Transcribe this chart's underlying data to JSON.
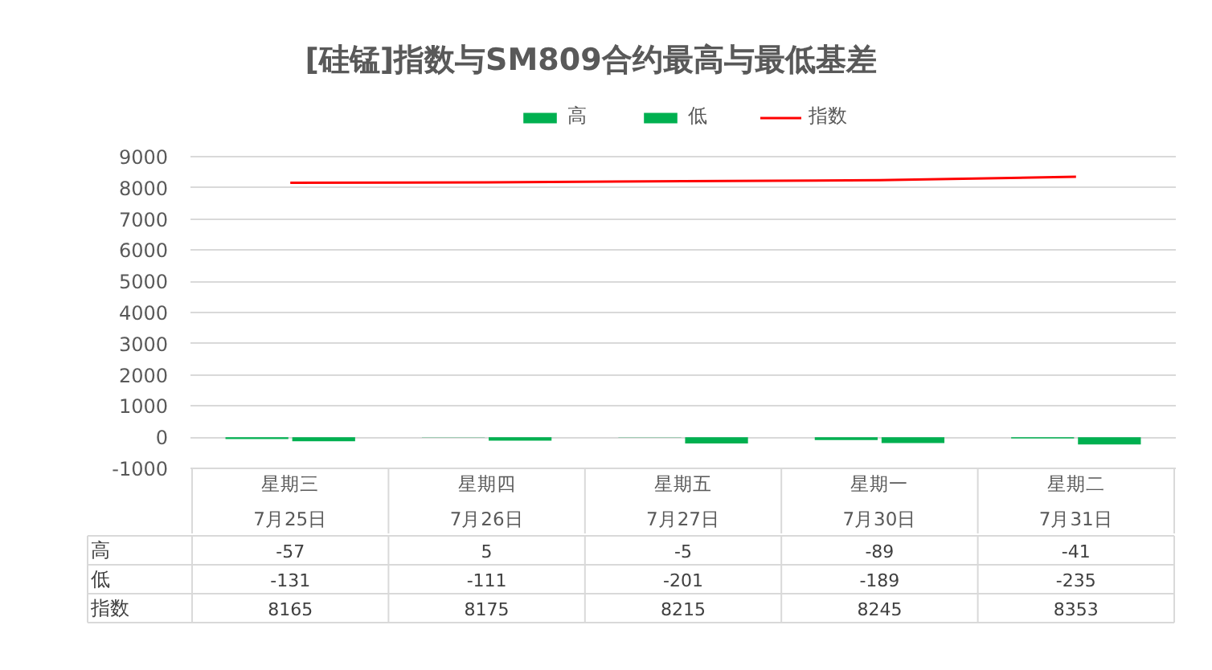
{
  "chart_data": {
    "type": "bar",
    "title": "[硅锰]指数与SM809合约最高与最低基差",
    "categories": [
      "星期三\n7月25日",
      "星期四\n7月26日",
      "星期五\n7月27日",
      "星期一\n7月30日",
      "星期二\n7月31日"
    ],
    "series": [
      {
        "name": "高",
        "color": "#00b050",
        "values": [
          -57,
          5,
          -5,
          -89,
          -41
        ]
      },
      {
        "name": "低",
        "color": "#00b050",
        "values": [
          -131,
          -111,
          -201,
          -189,
          -235
        ]
      },
      {
        "name": "指数",
        "type": "line",
        "color": "#ff0000",
        "values": [
          8165,
          8175,
          8215,
          8245,
          8353
        ]
      }
    ],
    "ylim": [
      -1000,
      9000
    ],
    "yticks": [
      -1000,
      0,
      1000,
      2000,
      3000,
      4000,
      5000,
      6000,
      7000,
      8000,
      9000
    ],
    "grid": "y",
    "legend": "top",
    "data_labels": true
  }
}
